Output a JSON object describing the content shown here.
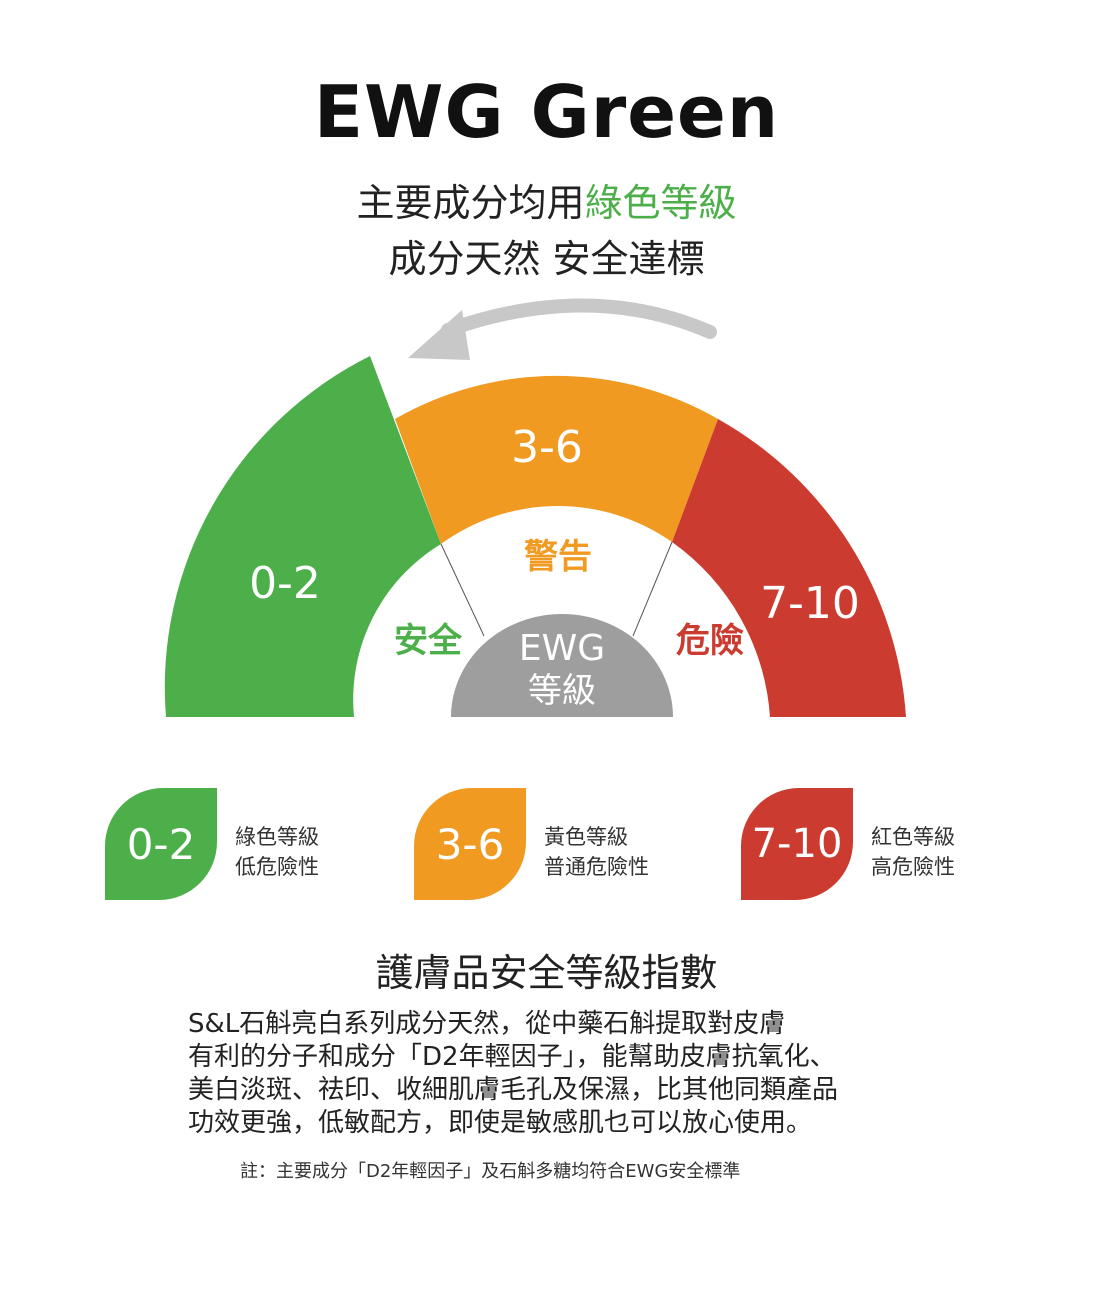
{
  "title": "EWG Green",
  "subtitle": {
    "line1_prefix": "主要成分均用",
    "line1_highlight": "綠色等級",
    "line2": "成分天然  安全達標"
  },
  "gauge": {
    "segments": [
      {
        "range": "0-2",
        "label": "安全",
        "color": "#4caf4a"
      },
      {
        "range": "3-6",
        "label": "警告",
        "color": "#f09a22"
      },
      {
        "range": "7-10",
        "label": "危險",
        "color": "#cb3b30"
      }
    ],
    "center": {
      "line1": "EWG",
      "line2": "等級",
      "color": "#9e9e9e"
    },
    "arrow_icon": "curved-arrow-left"
  },
  "legend": [
    {
      "range": "0-2",
      "line1": "綠色等級",
      "line2": "低危險性",
      "color": "#4caf4a"
    },
    {
      "range": "3-6",
      "line1": "黃色等級",
      "line2": "普通危險性",
      "color": "#f09a22"
    },
    {
      "range": "7-10",
      "line1": "紅色等級",
      "line2": "高危險性",
      "color": "#cb3b30"
    }
  ],
  "heading": "護膚品安全等級指數",
  "body": [
    "S&L石斛亮白系列成分天然，從中藥石斛提取對皮膚",
    "有利的分子和成分「D2年輕因子」，能幫助皮膚抗氧化、",
    "美白淡斑、祛印、收細肌膚毛孔及保濕，比其他同類產品",
    "功效更強，低敏配方，即使是敏感肌乜可以放心使用。"
  ],
  "note": "註：主要成分「D2年輕因子」及石斛多糖均符合EWG安全標準"
}
